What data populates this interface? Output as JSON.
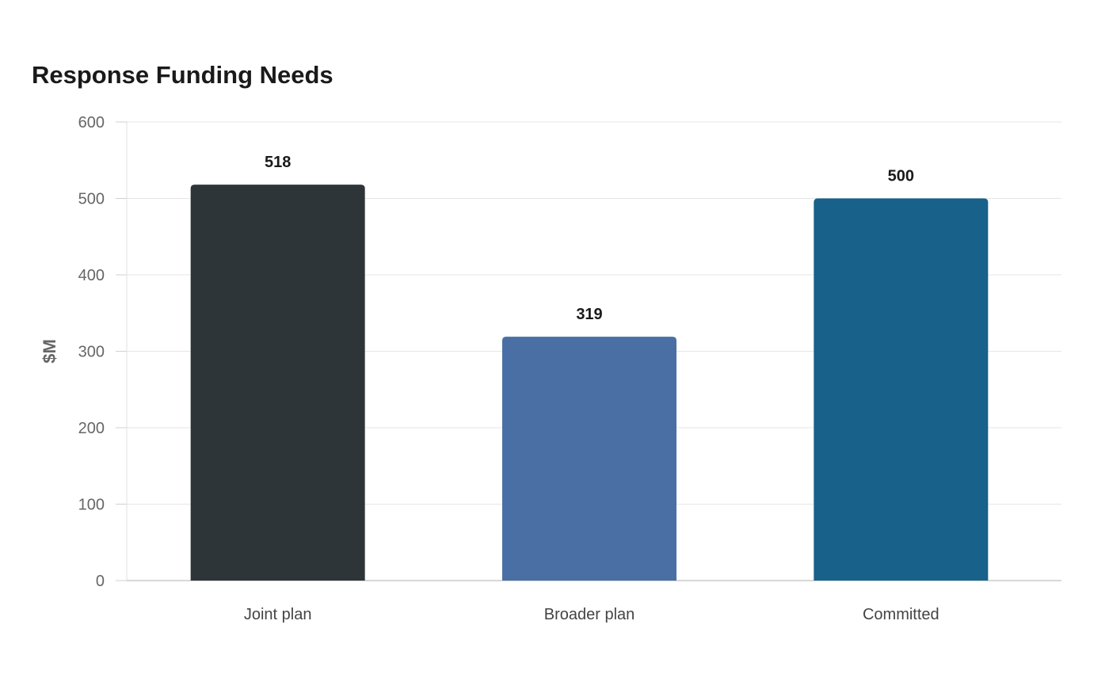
{
  "chart_data": {
    "type": "bar",
    "title": "Response Funding Needs",
    "xlabel": "",
    "ylabel": "$M",
    "categories": [
      "Joint plan",
      "Broader plan",
      "Committed"
    ],
    "values": [
      518,
      319,
      500
    ],
    "data_labels": [
      "518",
      "319",
      "500"
    ],
    "colors": [
      "#2e3538",
      "#4a6fa5",
      "#17618a"
    ],
    "ylim": [
      0,
      600
    ],
    "yticks": [
      0,
      100,
      200,
      300,
      400,
      500,
      600
    ],
    "ytick_labels": [
      "0",
      "100",
      "200",
      "300",
      "400",
      "500",
      "600"
    ],
    "grid": true,
    "legend": "none"
  }
}
